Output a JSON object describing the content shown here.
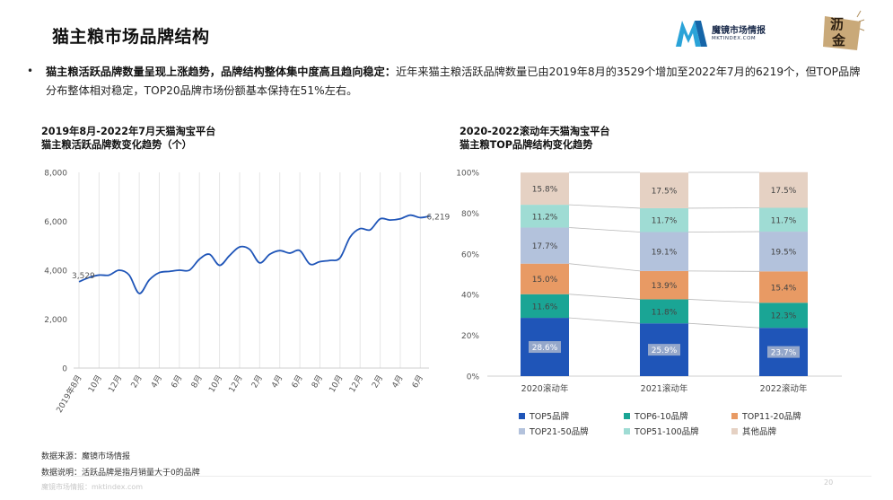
{
  "page": {
    "title": "猫主粮市场品牌结构",
    "brand_name_cn": "魔镜市场情报",
    "brand_name_en": "MKTINDEX.COM",
    "badge_text": [
      "沥",
      "金"
    ],
    "summary_bold": "猫主粮活跃品牌数量呈现上涨趋势，品牌结构整体集中度高且趋向稳定：",
    "summary_text": "近年来猫主粮活跃品牌数量已由2019年8月的3529个增加至2022年7月的6219个，但TOP品牌分布整体相对稳定，TOP20品牌市场份额基本保持在51%左右。",
    "source_note": "数据来源：魔镜市场情报",
    "definition_note": "数据说明：活跃品牌是指月销量大于0的品牌",
    "footer_text": "魔镜市场情报：mktindex.com",
    "page_number": "20",
    "colors": {
      "line": "#1f55b8",
      "top5": "#1f55b8",
      "top6_10": "#1aa595",
      "top11_20": "#e89a64",
      "top21_50": "#b3c2dc",
      "top51_100": "#9fdcd4",
      "others": "#e5d1c3"
    }
  },
  "chart_data": [
    {
      "type": "line",
      "title_lines": [
        "2019年8月-2022年7月天猫淘宝平台",
        "猫主粮活跃品牌数变化趋势（个）"
      ],
      "x_tick_labels": [
        "2019年8月",
        "10月",
        "12月",
        "2月",
        "4月",
        "6月",
        "8月",
        "10月",
        "12月",
        "2月",
        "4月",
        "6月",
        "8月",
        "10月",
        "12月",
        "2月",
        "4月",
        "6月"
      ],
      "y_tick_labels": [
        "0",
        "2,000",
        "4,000",
        "6,000",
        "8,000"
      ],
      "ylim": [
        0,
        8000
      ],
      "grid": "vertical",
      "series": [
        {
          "values": [
            3529,
            3700,
            3800,
            3800,
            4000,
            3800,
            3050,
            3600,
            3900,
            3950,
            4000,
            4000,
            4450,
            4650,
            4200,
            4600,
            4950,
            4850,
            4300,
            4650,
            4800,
            4700,
            4800,
            4250,
            4350,
            4400,
            4500,
            5350,
            5700,
            5650,
            6100,
            6050,
            6100,
            6250,
            6150,
            6219
          ]
        }
      ],
      "annotations": [
        {
          "label": "3,529",
          "index": 0,
          "value": 3529
        },
        {
          "label": "6,219",
          "index": 35,
          "value": 6219
        }
      ]
    },
    {
      "type": "bar",
      "stacked": true,
      "title_lines": [
        "2020-2022滚动年天猫淘宝平台",
        "猫主粮TOP品牌结构变化趋势"
      ],
      "categories": [
        "2020滚动年",
        "2021滚动年",
        "2022滚动年"
      ],
      "y_tick_labels": [
        "0%",
        "20%",
        "40%",
        "60%",
        "80%",
        "100%"
      ],
      "ylim": [
        0,
        100
      ],
      "legend_position": "bottom",
      "series": [
        {
          "name": "TOP5品牌",
          "values": [
            28.6,
            25.9,
            23.7
          ],
          "labels": [
            "28.6%",
            "25.9%",
            "23.7%"
          ]
        },
        {
          "name": "TOP6-10品牌",
          "values": [
            11.6,
            11.8,
            12.3
          ],
          "labels": [
            "11.6%",
            "11.8%",
            "12.3%"
          ]
        },
        {
          "name": "TOP11-20品牌",
          "values": [
            15.0,
            13.9,
            15.4
          ],
          "labels": [
            "15.0%",
            "13.9%",
            "15.4%"
          ]
        },
        {
          "name": "TOP21-50品牌",
          "values": [
            17.7,
            19.1,
            19.5
          ],
          "labels": [
            "17.7%",
            "19.1%",
            "19.5%"
          ]
        },
        {
          "name": "TOP51-100品牌",
          "values": [
            11.2,
            11.7,
            11.7
          ],
          "labels": [
            "11.2%",
            "11.7%",
            "11.7%"
          ]
        },
        {
          "name": "其他品牌",
          "values": [
            15.8,
            17.5,
            17.5
          ],
          "labels": [
            "15.8%",
            "17.5%",
            "17.5%"
          ]
        }
      ]
    }
  ]
}
